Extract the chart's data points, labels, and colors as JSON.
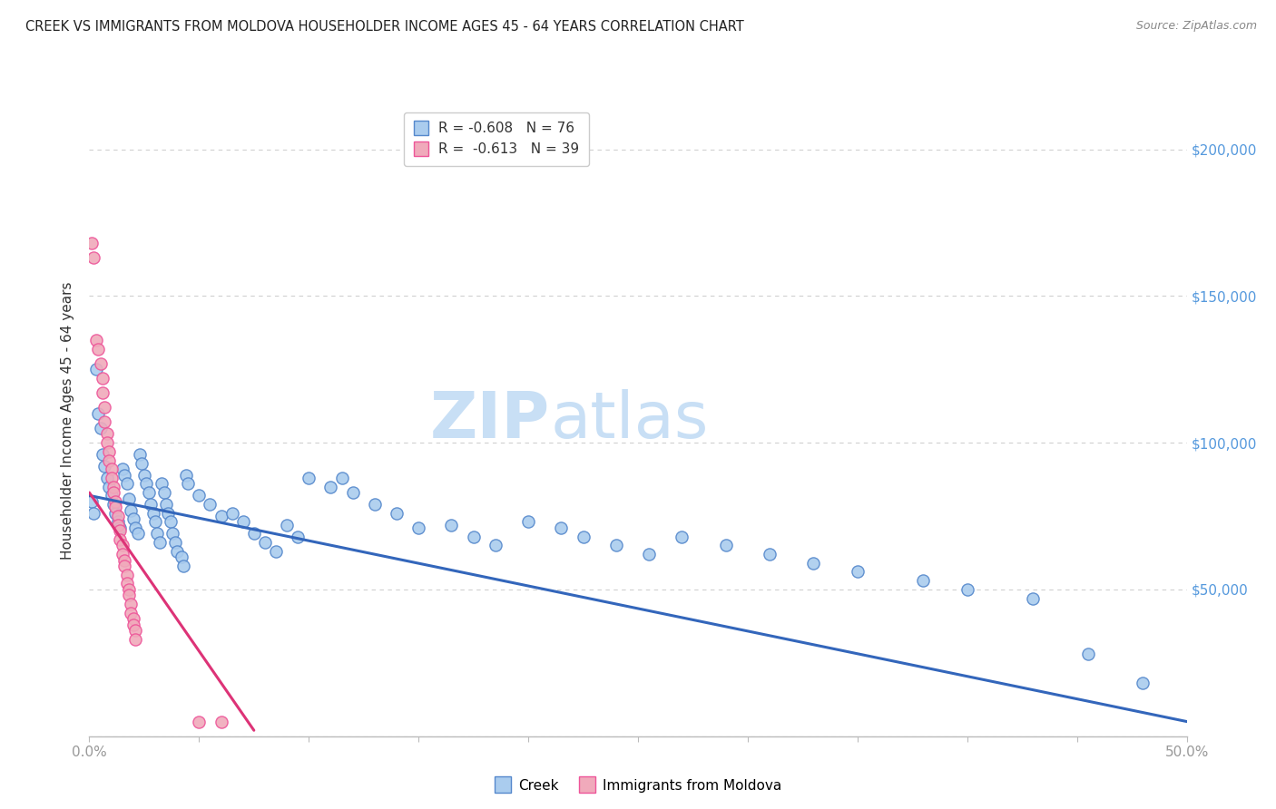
{
  "title": "CREEK VS IMMIGRANTS FROM MOLDOVA HOUSEHOLDER INCOME AGES 45 - 64 YEARS CORRELATION CHART",
  "source": "Source: ZipAtlas.com",
  "ylabel": "Householder Income Ages 45 - 64 years",
  "y_ticks": [
    0,
    50000,
    100000,
    150000,
    200000
  ],
  "y_tick_labels": [
    "",
    "$50,000",
    "$100,000",
    "$150,000",
    "$200,000"
  ],
  "watermark_zip": "ZIP",
  "watermark_atlas": "atlas",
  "creek_color": "#aaccee",
  "moldova_color": "#f0aabb",
  "creek_edge_color": "#5588cc",
  "moldova_edge_color": "#ee5599",
  "creek_line_color": "#3366bb",
  "moldova_line_color": "#dd3377",
  "creek_scatter": [
    [
      0.001,
      80000
    ],
    [
      0.002,
      76000
    ],
    [
      0.003,
      125000
    ],
    [
      0.004,
      110000
    ],
    [
      0.005,
      105000
    ],
    [
      0.006,
      96000
    ],
    [
      0.007,
      92000
    ],
    [
      0.008,
      88000
    ],
    [
      0.009,
      85000
    ],
    [
      0.01,
      82000
    ],
    [
      0.011,
      79000
    ],
    [
      0.012,
      76000
    ],
    [
      0.013,
      73000
    ],
    [
      0.014,
      71000
    ],
    [
      0.015,
      91000
    ],
    [
      0.016,
      89000
    ],
    [
      0.017,
      86000
    ],
    [
      0.018,
      81000
    ],
    [
      0.019,
      77000
    ],
    [
      0.02,
      74000
    ],
    [
      0.021,
      71000
    ],
    [
      0.022,
      69000
    ],
    [
      0.023,
      96000
    ],
    [
      0.024,
      93000
    ],
    [
      0.025,
      89000
    ],
    [
      0.026,
      86000
    ],
    [
      0.027,
      83000
    ],
    [
      0.028,
      79000
    ],
    [
      0.029,
      76000
    ],
    [
      0.03,
      73000
    ],
    [
      0.031,
      69000
    ],
    [
      0.032,
      66000
    ],
    [
      0.033,
      86000
    ],
    [
      0.034,
      83000
    ],
    [
      0.035,
      79000
    ],
    [
      0.036,
      76000
    ],
    [
      0.037,
      73000
    ],
    [
      0.038,
      69000
    ],
    [
      0.039,
      66000
    ],
    [
      0.04,
      63000
    ],
    [
      0.042,
      61000
    ],
    [
      0.043,
      58000
    ],
    [
      0.044,
      89000
    ],
    [
      0.045,
      86000
    ],
    [
      0.05,
      82000
    ],
    [
      0.055,
      79000
    ],
    [
      0.06,
      75000
    ],
    [
      0.065,
      76000
    ],
    [
      0.07,
      73000
    ],
    [
      0.075,
      69000
    ],
    [
      0.08,
      66000
    ],
    [
      0.085,
      63000
    ],
    [
      0.09,
      72000
    ],
    [
      0.095,
      68000
    ],
    [
      0.1,
      88000
    ],
    [
      0.11,
      85000
    ],
    [
      0.115,
      88000
    ],
    [
      0.12,
      83000
    ],
    [
      0.13,
      79000
    ],
    [
      0.14,
      76000
    ],
    [
      0.15,
      71000
    ],
    [
      0.165,
      72000
    ],
    [
      0.175,
      68000
    ],
    [
      0.185,
      65000
    ],
    [
      0.2,
      73000
    ],
    [
      0.215,
      71000
    ],
    [
      0.225,
      68000
    ],
    [
      0.24,
      65000
    ],
    [
      0.255,
      62000
    ],
    [
      0.27,
      68000
    ],
    [
      0.29,
      65000
    ],
    [
      0.31,
      62000
    ],
    [
      0.33,
      59000
    ],
    [
      0.35,
      56000
    ],
    [
      0.38,
      53000
    ],
    [
      0.4,
      50000
    ],
    [
      0.43,
      47000
    ],
    [
      0.455,
      28000
    ],
    [
      0.48,
      18000
    ]
  ],
  "moldova_scatter": [
    [
      0.001,
      168000
    ],
    [
      0.002,
      163000
    ],
    [
      0.003,
      135000
    ],
    [
      0.004,
      132000
    ],
    [
      0.005,
      127000
    ],
    [
      0.006,
      122000
    ],
    [
      0.006,
      117000
    ],
    [
      0.007,
      112000
    ],
    [
      0.007,
      107000
    ],
    [
      0.008,
      103000
    ],
    [
      0.008,
      100000
    ],
    [
      0.009,
      97000
    ],
    [
      0.009,
      94000
    ],
    [
      0.01,
      91000
    ],
    [
      0.01,
      88000
    ],
    [
      0.011,
      85000
    ],
    [
      0.011,
      83000
    ],
    [
      0.012,
      80000
    ],
    [
      0.012,
      78000
    ],
    [
      0.013,
      75000
    ],
    [
      0.013,
      72000
    ],
    [
      0.014,
      70000
    ],
    [
      0.014,
      67000
    ],
    [
      0.015,
      65000
    ],
    [
      0.015,
      62000
    ],
    [
      0.016,
      60000
    ],
    [
      0.016,
      58000
    ],
    [
      0.017,
      55000
    ],
    [
      0.017,
      52000
    ],
    [
      0.018,
      50000
    ],
    [
      0.018,
      48000
    ],
    [
      0.019,
      45000
    ],
    [
      0.019,
      42000
    ],
    [
      0.02,
      40000
    ],
    [
      0.02,
      38000
    ],
    [
      0.021,
      36000
    ],
    [
      0.021,
      33000
    ],
    [
      0.05,
      5000
    ],
    [
      0.06,
      5000
    ]
  ],
  "creek_trendline_x": [
    0.0,
    0.5
  ],
  "creek_trendline_y": [
    82000,
    5000
  ],
  "moldova_trendline_x": [
    0.0,
    0.075
  ],
  "moldova_trendline_y": [
    83000,
    2000
  ],
  "xlim": [
    0.0,
    0.5
  ],
  "ylim": [
    0,
    215000
  ],
  "plot_area_ylim": [
    0,
    215000
  ],
  "x_minor_ticks": [
    0.05,
    0.1,
    0.15,
    0.2,
    0.25,
    0.3,
    0.35,
    0.4,
    0.45
  ],
  "bg_color": "#ffffff",
  "grid_color": "#d0d0d0",
  "tick_color": "#999999",
  "axis_color": "#bbbbbb",
  "title_color": "#222222",
  "ylabel_color": "#333333",
  "right_label_color": "#5599dd",
  "legend_label_color": "#333333",
  "legend_r_color": "#cc2244",
  "legend_n_color": "#2255cc"
}
